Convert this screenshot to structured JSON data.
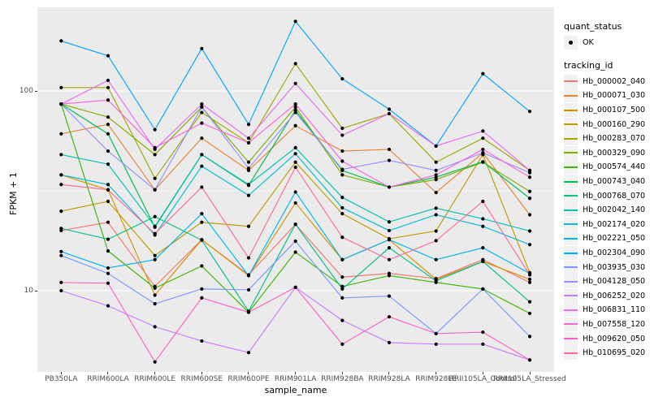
{
  "figure": {
    "background": "#FFFFFF",
    "panel_background": "#EBEBEB",
    "grid_color": "#FFFFFF",
    "tick_text_color": "#4D4D4D",
    "point_color": "#000000"
  },
  "axes": {
    "y_title": "FPKM + 1",
    "x_title": "sample_name"
  },
  "legend": {
    "quant_status_title": "quant_status",
    "quant_status_item": "OK",
    "tracking_id_title": "tracking_id"
  },
  "chart_data": {
    "type": "line",
    "title": "",
    "xlabel": "sample_name",
    "ylabel": "FPKM + 1",
    "y_scale": "log10",
    "ylim": [
      3.9,
      262
    ],
    "y_ticks": [
      100,
      10
    ],
    "y_minor_gridlines": [
      31.62
    ],
    "grid": "on",
    "legend_position": "right",
    "point_marker": "black point (quant_status = OK) on every sample",
    "categories": [
      "PB350LA",
      "RRIM600LA",
      "RRIM600LE",
      "RRIM600SE",
      "RRIM600PE",
      "RRIM901LA",
      "RRIM928BA",
      "RRIM928LA",
      "RRIM928LE",
      "RRII105LA_Control",
      "RRII105LA_Stressed"
    ],
    "series": [
      {
        "name": "Hb_000002_040",
        "color": "#F8766D",
        "values": [
          20,
          22,
          10.5,
          18,
          12,
          21.5,
          11.7,
          12.2,
          11.5,
          14.3,
          11
        ]
      },
      {
        "name": "Hb_000071_030",
        "color": "#EA8331",
        "values": [
          61,
          68,
          32,
          58,
          40,
          67,
          50,
          51,
          31,
          49,
          24
        ]
      },
      {
        "name": "Hb_000107_500",
        "color": "#D89000",
        "values": [
          38,
          32,
          9.5,
          18,
          11.9,
          27.5,
          14.3,
          18,
          11.4,
          14,
          11.4
        ]
      },
      {
        "name": "Hb_000160_290",
        "color": "#C09B00",
        "values": [
          25,
          28,
          15,
          22,
          21,
          44,
          24.3,
          18.2,
          19.9,
          48,
          12.3
        ]
      },
      {
        "name": "Hb_000283_070",
        "color": "#A3A500",
        "values": [
          104,
          104,
          36.5,
          78,
          55,
          137,
          65,
          77,
          44,
          58,
          40
        ]
      },
      {
        "name": "Hb_000329_090",
        "color": "#7CAE00",
        "values": [
          86,
          74,
          48,
          83,
          44,
          83,
          38,
          33,
          36,
          44,
          31.4
        ]
      },
      {
        "name": "Hb_000574_440",
        "color": "#39B600",
        "values": [
          86,
          15.8,
          10.3,
          13.3,
          7.8,
          15.6,
          10.5,
          11.9,
          11,
          10.2,
          7.7
        ]
      },
      {
        "name": "Hb_000743_040",
        "color": "#00BB4E",
        "values": [
          86,
          61,
          20.8,
          48,
          33.7,
          80,
          40,
          33,
          37,
          44.2,
          29
        ]
      },
      {
        "name": "Hb_000768_070",
        "color": "#00C087",
        "values": [
          20.5,
          18.1,
          23.5,
          17.9,
          7.9,
          21.5,
          10.2,
          16.4,
          11.2,
          14,
          8.8
        ]
      },
      {
        "name": "Hb_002042_140",
        "color": "#00C0B2",
        "values": [
          48,
          43,
          21,
          48,
          34,
          52,
          29.3,
          22.1,
          25.9,
          22.9,
          19.9
        ]
      },
      {
        "name": "Hb_002174_020",
        "color": "#00BCD8",
        "values": [
          38,
          34,
          19,
          42,
          30,
          48.5,
          26,
          20,
          24,
          21,
          17
        ]
      },
      {
        "name": "Hb_002221_050",
        "color": "#00B4EF",
        "values": [
          15.7,
          13,
          14.3,
          24.3,
          11.9,
          31.2,
          14.3,
          18,
          14.3,
          16.4,
          12.2
        ]
      },
      {
        "name": "Hb_002304_090",
        "color": "#00A5FF",
        "values": [
          178,
          150,
          64,
          163,
          68,
          223,
          115,
          81,
          53,
          122,
          79
        ]
      },
      {
        "name": "Hb_003935_030",
        "color": "#7997FF",
        "values": [
          15,
          12.2,
          8.6,
          10.2,
          10.1,
          17.7,
          9.2,
          9.4,
          6.1,
          10.2,
          5.9
        ]
      },
      {
        "name": "Hb_004128_050",
        "color": "#9590FF",
        "values": [
          86,
          50,
          32,
          83,
          41,
          78,
          40.5,
          44.9,
          40,
          49,
          39
        ]
      },
      {
        "name": "Hb_006252_020",
        "color": "#C77CFF",
        "values": [
          10,
          8.4,
          6.6,
          5.6,
          4.9,
          10.4,
          7.1,
          5.5,
          5.4,
          5.4,
          4.5
        ]
      },
      {
        "name": "Hb_006831_110",
        "color": "#E76BF3",
        "values": [
          86,
          113,
          51,
          86,
          58,
          109,
          60,
          77,
          53,
          63,
          40
        ]
      },
      {
        "name": "Hb_007558_120",
        "color": "#FA62DB",
        "values": [
          86,
          90,
          52,
          69,
          55,
          86,
          44.5,
          33,
          38,
          51,
          37
        ]
      },
      {
        "name": "Hb_009620_050",
        "color": "#FF61C7",
        "values": [
          11,
          10.9,
          4.4,
          9.2,
          7.8,
          10.4,
          5.4,
          7.4,
          6.1,
          6.2,
          4.5
        ]
      },
      {
        "name": "Hb_010695_020",
        "color": "#FF6B94",
        "values": [
          34,
          32,
          19.3,
          33,
          14.6,
          41.5,
          18.5,
          14.3,
          17.8,
          28,
          12
        ]
      }
    ]
  }
}
